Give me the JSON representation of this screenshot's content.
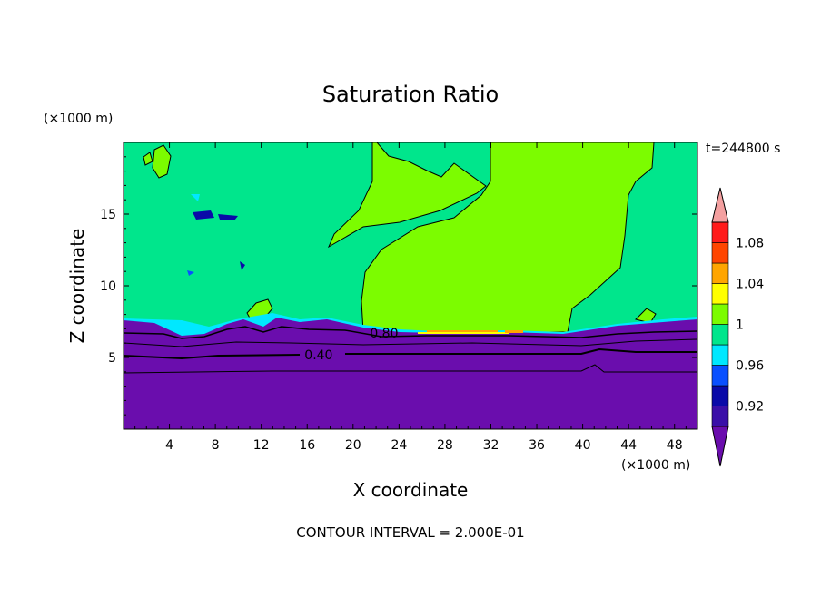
{
  "chart_data": {
    "type": "contour",
    "title": "Saturation Ratio",
    "xlabel": "X coordinate",
    "ylabel": "Z coordinate",
    "x_unit": "(×1000 m)",
    "y_unit": "(×1000 m)",
    "time_label": "t=244800 s",
    "footer": "CONTOUR INTERVAL = 2.000E-01",
    "xlim": [
      0,
      50
    ],
    "ylim": [
      0,
      20
    ],
    "x_ticks": [
      4,
      8,
      12,
      16,
      20,
      24,
      28,
      32,
      36,
      40,
      44,
      48
    ],
    "y_ticks": [
      5,
      10,
      15
    ],
    "contour_labels": [
      {
        "text": "0.40",
        "x": 17.0,
        "y": 5.2
      },
      {
        "text": "0.80",
        "x": 22.7,
        "y": 6.7
      }
    ],
    "colorbar": {
      "levels": [
        0.9,
        0.92,
        0.94,
        0.96,
        0.98,
        1.0,
        1.02,
        1.04,
        1.06,
        1.08,
        1.1
      ],
      "colors": [
        "#6a0dad",
        "#3a0fa8",
        "#0a0aa8",
        "#0a50ff",
        "#00e8ff",
        "#00e68c",
        "#7cfc00",
        "#ffff00",
        "#ffa500",
        "#ff4500",
        "#ff1a1a",
        "#f4a0a0"
      ],
      "tick_labels": [
        {
          "text": "0.92",
          "level": 0.92
        },
        {
          "text": "0.96",
          "level": 0.96
        },
        {
          "text": "1",
          "level": 1.0
        },
        {
          "text": "1.04",
          "level": 1.04
        },
        {
          "text": "1.08",
          "level": 1.08
        }
      ]
    }
  }
}
